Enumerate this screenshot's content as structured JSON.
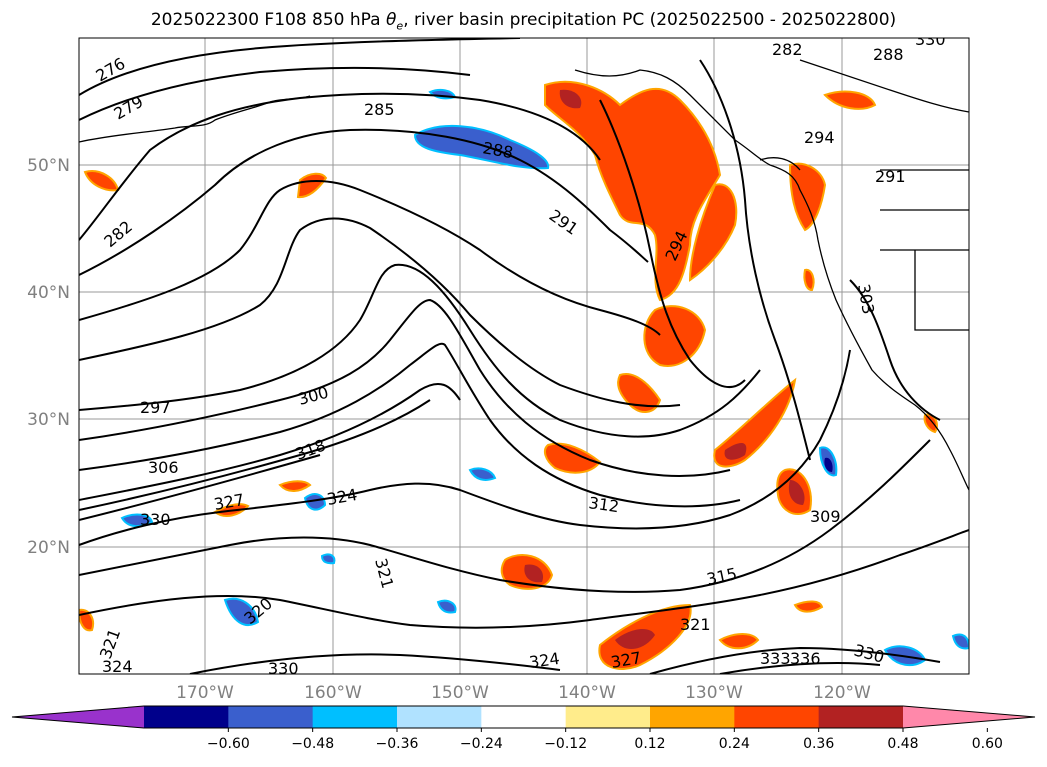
{
  "title": {
    "prefix": "2025022300 F108 850 hPa ",
    "theta": "θ",
    "sub": "e",
    "suffix": ", river basin precipitation PC (2025022500 - 2025022800)"
  },
  "axes": {
    "lat_ticks": [
      "50°N",
      "40°N",
      "30°N",
      "20°N"
    ],
    "lon_ticks": [
      "170°W",
      "160°W",
      "150°W",
      "140°W",
      "130°W",
      "120°W"
    ]
  },
  "contour_labels": [
    "276",
    "279",
    "282",
    "285",
    "288",
    "291",
    "294",
    "297",
    "300",
    "303",
    "306",
    "309",
    "312",
    "315",
    "318",
    "321",
    "324",
    "327",
    "330",
    "333",
    "336",
    "294",
    "291",
    "288",
    "282",
    "324",
    "327",
    "330",
    "321",
    "324",
    "321",
    "330",
    "330",
    "320"
  ],
  "colorbar": {
    "ticks": [
      "−0.60",
      "−0.48",
      "−0.36",
      "−0.24",
      "−0.12",
      "0.12",
      "0.24",
      "0.36",
      "0.48",
      "0.60"
    ],
    "colors": [
      "#9932CC",
      "#00008B",
      "#3A5FCD",
      "#00BFFF",
      "#B0E2FF",
      "#FFFFFF",
      "#FFEC8B",
      "#FFA500",
      "#FF4500",
      "#B22222",
      "#FF88AA"
    ]
  },
  "chart_data": {
    "type": "heatmap",
    "lat_range": [
      "10°N",
      "60°N"
    ],
    "lon_range": [
      "180°",
      "110°W"
    ],
    "isotherm_label_values": [
      276,
      279,
      282,
      285,
      288,
      291,
      294,
      297,
      300,
      303,
      306,
      309,
      312,
      315,
      318,
      321,
      324,
      327,
      330,
      333,
      336
    ],
    "colorbar_bounds": [
      -0.6,
      -0.48,
      -0.36,
      -0.24,
      -0.12,
      0.12,
      0.24,
      0.36,
      0.48,
      0.6
    ]
  }
}
